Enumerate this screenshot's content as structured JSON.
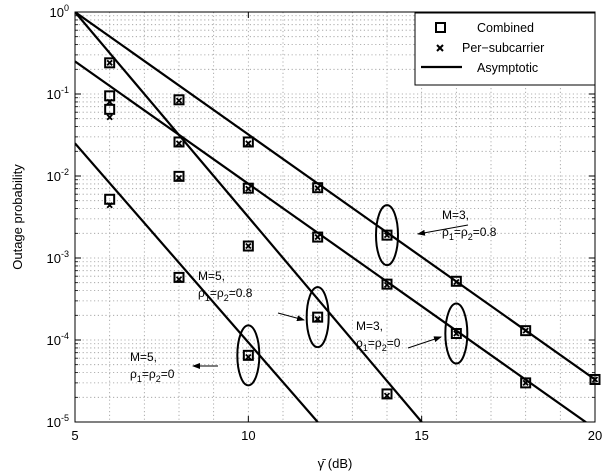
{
  "chart_data": {
    "type": "line",
    "xlabel": "γ̄ (dB)",
    "ylabel": "Outage probability",
    "x_scale": "linear",
    "y_scale": "log",
    "xlim": [
      5,
      20
    ],
    "ylim": [
      1e-05,
      1
    ],
    "grid": true,
    "legend_position": "top-right",
    "x_ticks": [
      "5",
      "10",
      "15",
      "20"
    ],
    "y_ticks": [
      {
        "base": "10",
        "exp": "0"
      },
      {
        "base": "10",
        "exp": "-1"
      },
      {
        "base": "10",
        "exp": "-2"
      },
      {
        "base": "10",
        "exp": "-3"
      },
      {
        "base": "10",
        "exp": "-4"
      },
      {
        "base": "10",
        "exp": "-5"
      }
    ],
    "legend": [
      "Combined",
      "Per−subcarrier",
      "Asymptotic"
    ],
    "series": [
      {
        "name": "Combined",
        "marker": "square",
        "points": [
          [
            6,
            0.24
          ],
          [
            6,
            0.095
          ],
          [
            6,
            0.065
          ],
          [
            6,
            0.0052
          ],
          [
            8,
            0.085
          ],
          [
            8,
            0.026
          ],
          [
            8,
            0.0099
          ],
          [
            8,
            0.00058
          ],
          [
            10,
            0.026
          ],
          [
            10,
            0.0071
          ],
          [
            10,
            0.0014
          ],
          [
            10,
            6.5e-05
          ],
          [
            12,
            0.0072
          ],
          [
            12,
            0.0018
          ],
          [
            12,
            0.00019
          ],
          [
            14,
            0.0019
          ],
          [
            14,
            0.00048
          ],
          [
            14,
            2.2e-05
          ],
          [
            16,
            0.00052
          ],
          [
            16,
            0.00012
          ],
          [
            18,
            0.00013
          ],
          [
            18,
            3e-05
          ],
          [
            20,
            3.3e-05
          ]
        ]
      },
      {
        "name": "Per−subcarrier",
        "marker": "x",
        "points": [
          [
            6,
            0.24
          ],
          [
            6,
            0.08
          ],
          [
            6,
            0.052
          ],
          [
            6,
            0.0044
          ],
          [
            8,
            0.083
          ],
          [
            8,
            0.025
          ],
          [
            8,
            0.0095
          ],
          [
            8,
            0.00055
          ],
          [
            10,
            0.025
          ],
          [
            10,
            0.007
          ],
          [
            10,
            0.0014
          ],
          [
            10,
            6.2e-05
          ],
          [
            12,
            0.0071
          ],
          [
            12,
            0.0018
          ],
          [
            12,
            0.00018
          ],
          [
            14,
            0.0019
          ],
          [
            14,
            0.00047
          ],
          [
            14,
            2.1e-05
          ],
          [
            16,
            0.00051
          ],
          [
            16,
            0.00012
          ],
          [
            18,
            0.00013
          ],
          [
            18,
            3e-05
          ],
          [
            20,
            3.3e-05
          ]
        ]
      },
      {
        "name": "Asymptotic",
        "marker": "line",
        "lines": [
          [
            [
              5,
              1.0
            ],
            [
              20,
              3.3e-05
            ]
          ],
          [
            [
              5,
              0.25
            ],
            [
              20,
              8.3e-06
            ]
          ],
          [
            [
              5,
              1.0
            ],
            [
              15,
              1e-05
            ]
          ],
          [
            [
              5,
              0.025
            ],
            [
              12,
              1e-05
            ]
          ]
        ]
      }
    ],
    "annotations": [
      {
        "line1": "M=3,",
        "rho_text": "ρ",
        "sub1": "1",
        "mid": "=ρ",
        "sub2": "2",
        "tail": "=0.8",
        "ellipse_center": [
          14,
          0.0019
        ],
        "arrow_to": [
          14.4,
          0.0019
        ]
      },
      {
        "line1": "M=3,",
        "rho_text": "ρ",
        "sub1": "1",
        "mid": "=ρ",
        "sub2": "2",
        "tail": "=0",
        "ellipse_center": [
          16,
          0.00012
        ],
        "arrow_to": [
          15.6,
          0.00012
        ]
      },
      {
        "line1": "M=5,",
        "rho_text": "ρ",
        "sub1": "1",
        "mid": "=ρ",
        "sub2": "2",
        "tail": "=0.8",
        "ellipse_center": [
          12,
          0.00019
        ],
        "arrow_to": [
          11.6,
          0.00019
        ]
      },
      {
        "line1": "M=5,",
        "rho_text": "ρ",
        "sub1": "1",
        "mid": "=ρ",
        "sub2": "2",
        "tail": "=0",
        "ellipse_center": [
          10,
          6.5e-05
        ],
        "arrow_to": [
          9.6,
          6.5e-05
        ]
      }
    ]
  }
}
